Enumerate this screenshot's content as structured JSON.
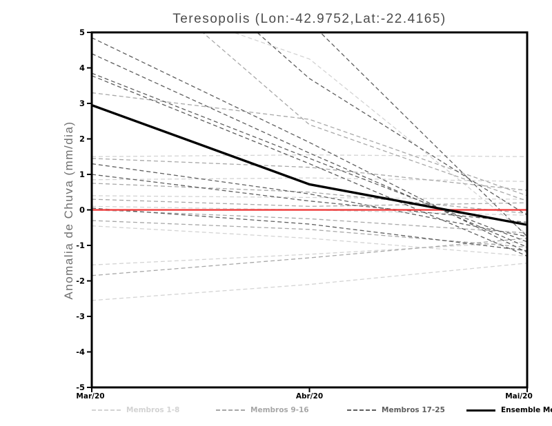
{
  "title": "Teresopolis (Lon:-42.9752,Lat:-22.4165)",
  "ylabel": "Anomalia de Chuva (mm/dia)",
  "colors": {
    "members_1_8": "#d3d3d3",
    "members_9_16": "#a7a7a7",
    "members_17_25": "#5e5e5e",
    "ensemble_mean": "#000000",
    "zero_line": "#f04343",
    "frame": "#000000",
    "title_text": "#4c4c4c",
    "axis_label_text": "#6f6f6f",
    "tick_text": "#000000"
  },
  "legend": {
    "items": [
      {
        "label": "Membros 1-8",
        "color": "#d3d3d3",
        "style": "dashed"
      },
      {
        "label": "Membros 9-16",
        "color": "#a7a7a7",
        "style": "dashed"
      },
      {
        "label": "Membros 17-25",
        "color": "#5e5e5e",
        "style": "dashed"
      },
      {
        "label": "Ensemble Mean",
        "color": "#000000",
        "style": "solid"
      }
    ]
  },
  "chart_data": {
    "type": "line",
    "x_categories": [
      "Mar/20",
      "Abr/20",
      "Mai/20"
    ],
    "y_ticks": [
      5,
      4,
      3,
      2,
      1,
      0,
      -1,
      -2,
      -3,
      -4,
      -5
    ],
    "ylim": [
      -5,
      5
    ],
    "grid": false,
    "zero_line_value": 0,
    "groups": [
      {
        "name": "Membros 1-8",
        "color": "#d3d3d3",
        "dashed": true,
        "members": [
          [
            1.5,
            1.55,
            1.5
          ],
          [
            0.85,
            0.9,
            0.8
          ],
          [
            0.4,
            0.35,
            0.3
          ],
          [
            0.1,
            0.0,
            -0.15
          ],
          [
            -0.45,
            -0.8,
            -1.3
          ],
          [
            -1.55,
            -1.25,
            -0.9
          ],
          [
            -2.55,
            -2.1,
            -1.5
          ],
          [
            6.4,
            4.25,
            -0.7
          ]
        ]
      },
      {
        "name": "Membros 9-16",
        "color": "#a7a7a7",
        "dashed": true,
        "members": [
          [
            3.3,
            2.55,
            0.4
          ],
          [
            7.7,
            2.4,
            0.25
          ],
          [
            1.45,
            1.2,
            0.55
          ],
          [
            0.75,
            0.5,
            -0.1
          ],
          [
            0.0,
            -0.25,
            -0.65
          ],
          [
            -0.3,
            -0.55,
            -1.05
          ],
          [
            -1.85,
            -1.35,
            -0.8
          ],
          [
            0.3,
            0.1,
            0.2
          ]
        ]
      },
      {
        "name": "Membros 17-25",
        "color": "#5e5e5e",
        "dashed": true,
        "members": [
          [
            8.0,
            5.3,
            -0.75
          ],
          [
            9.1,
            3.7,
            -0.15
          ],
          [
            4.85,
            1.9,
            -1.2
          ],
          [
            4.4,
            1.6,
            -1.05
          ],
          [
            3.85,
            1.45,
            -0.9
          ],
          [
            3.78,
            1.3,
            -1.3
          ],
          [
            1.3,
            0.45,
            -0.75
          ],
          [
            1.0,
            0.25,
            -0.35
          ],
          [
            0.05,
            -0.4,
            -1.15
          ]
        ]
      }
    ],
    "mean": {
      "name": "Ensemble Mean",
      "color": "#000000",
      "values": [
        2.95,
        0.72,
        -0.42
      ]
    }
  }
}
